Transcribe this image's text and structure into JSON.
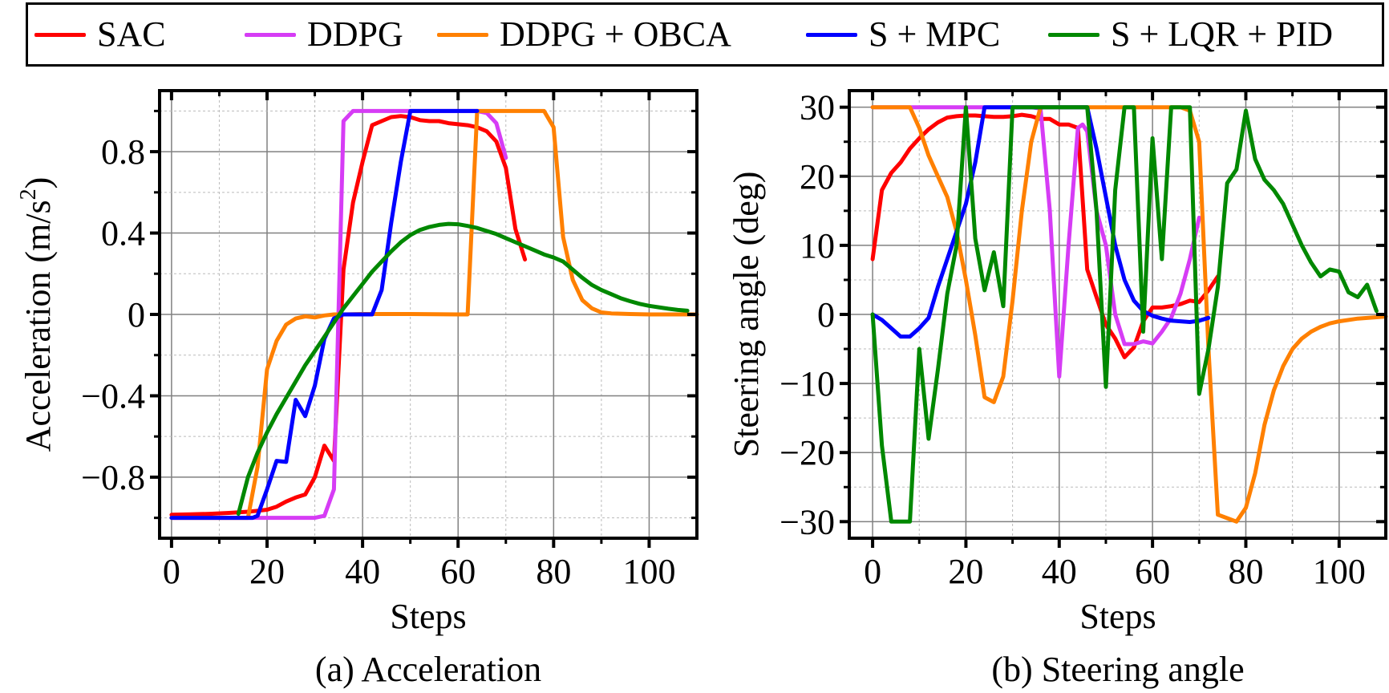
{
  "legend": {
    "items": [
      {
        "label": "SAC",
        "color": "#ff0000"
      },
      {
        "label": "DDPG",
        "color": "#d63cf5"
      },
      {
        "label": "DDPG + OBCA",
        "color": "#ff8000"
      },
      {
        "label": "S + MPC",
        "color": "#0000ff"
      },
      {
        "label": "S + LQR + PID",
        "color": "#008800"
      }
    ]
  },
  "chart_data": [
    {
      "type": "line",
      "id": "acceleration",
      "caption": "(a) Acceleration",
      "title": "",
      "xlabel": "Steps",
      "ylabel": "Acceleration (m/s²)",
      "ylabel_main": "Acceleration (m/s",
      "ylabel_sup": "2",
      "ylabel_end": ")",
      "xlim": [
        -2.5,
        110
      ],
      "ylim": [
        -1.1,
        1.1
      ],
      "xticks": [
        0,
        20,
        40,
        60,
        80,
        100
      ],
      "xtick_labels": [
        "0",
        "20",
        "40",
        "60",
        "80",
        "100"
      ],
      "yticks": [
        0.8,
        0.4,
        0,
        -0.4,
        -0.8
      ],
      "ytick_labels": [
        "0.8",
        "0.4",
        "0",
        "−0.4",
        "−0.8"
      ],
      "minor_yticks": [
        1.0,
        0.6,
        0.2,
        -0.2,
        -0.6,
        -1.0
      ],
      "minor_xticks": [
        10,
        30,
        50,
        70,
        90
      ],
      "grid": true,
      "series": [
        {
          "name": "SAC",
          "color": "#ff0000",
          "x": [
            0,
            4,
            8,
            12,
            14,
            16,
            18,
            20,
            22,
            24,
            26,
            28,
            30,
            32,
            34,
            36,
            38,
            40,
            42,
            44,
            46,
            48,
            50,
            52,
            54,
            56,
            58,
            60,
            62,
            64,
            66,
            68,
            70,
            72,
            74
          ],
          "y": [
            -0.985,
            -0.983,
            -0.98,
            -0.976,
            -0.973,
            -0.97,
            -0.965,
            -0.96,
            -0.945,
            -0.92,
            -0.9,
            -0.885,
            -0.8,
            -0.645,
            -0.72,
            0.22,
            0.55,
            0.75,
            0.93,
            0.95,
            0.97,
            0.975,
            0.97,
            0.955,
            0.95,
            0.95,
            0.94,
            0.935,
            0.93,
            0.92,
            0.9,
            0.85,
            0.72,
            0.42,
            0.27
          ]
        },
        {
          "name": "DDPG",
          "color": "#d63cf5",
          "x": [
            0,
            10,
            20,
            30,
            32,
            34,
            36,
            38,
            40,
            50,
            60,
            64,
            66,
            68,
            70
          ],
          "y": [
            -1.0,
            -1.0,
            -1.0,
            -1.0,
            -0.99,
            -0.86,
            0.95,
            1.0,
            1.0,
            1.0,
            1.0,
            1.0,
            0.99,
            0.94,
            0.77
          ]
        },
        {
          "name": "DDPG + OBCA",
          "color": "#ff8000",
          "x": [
            0,
            10,
            16,
            18,
            20,
            22,
            24,
            26,
            28,
            30,
            32,
            34,
            36,
            40,
            50,
            60,
            62,
            64,
            66,
            70,
            78,
            80,
            82,
            84,
            86,
            88,
            90,
            92,
            96,
            100,
            110
          ],
          "y": [
            -1.0,
            -1.0,
            -1.0,
            -0.75,
            -0.27,
            -0.13,
            -0.05,
            -0.02,
            -0.01,
            -0.015,
            -0.005,
            0.0,
            0.0,
            0.002,
            0.002,
            0.0,
            0.0,
            1.0,
            1.0,
            1.0,
            1.0,
            0.92,
            0.38,
            0.17,
            0.07,
            0.03,
            0.01,
            0.005,
            0.002,
            0.0,
            0.0
          ]
        },
        {
          "name": "S + MPC",
          "color": "#0000ff",
          "x": [
            0,
            10,
            17,
            18,
            20,
            22,
            24,
            26,
            28,
            30,
            32,
            34,
            36,
            40,
            42,
            44,
            46,
            48,
            50,
            55,
            60,
            64
          ],
          "y": [
            -1.0,
            -1.0,
            -1.0,
            -0.99,
            -0.86,
            -0.72,
            -0.725,
            -0.42,
            -0.5,
            -0.35,
            -0.12,
            -0.02,
            0.0,
            0.0,
            0.0,
            0.12,
            0.45,
            0.75,
            1.0,
            1.0,
            1.0,
            1.0
          ]
        },
        {
          "name": "S + LQR + PID",
          "color": "#008800",
          "x": [
            14,
            16,
            18,
            20,
            22,
            24,
            26,
            28,
            30,
            32,
            34,
            36,
            38,
            40,
            42,
            44,
            46,
            48,
            50,
            52,
            54,
            56,
            58,
            60,
            62,
            64,
            66,
            68,
            70,
            72,
            74,
            76,
            78,
            80,
            82,
            84,
            86,
            88,
            90,
            92,
            94,
            96,
            98,
            100,
            102,
            104,
            106,
            108
          ],
          "y": [
            -0.98,
            -0.8,
            -0.68,
            -0.58,
            -0.49,
            -0.41,
            -0.33,
            -0.25,
            -0.18,
            -0.11,
            -0.04,
            0.03,
            0.09,
            0.15,
            0.21,
            0.26,
            0.31,
            0.355,
            0.39,
            0.415,
            0.43,
            0.44,
            0.445,
            0.443,
            0.435,
            0.425,
            0.41,
            0.395,
            0.375,
            0.355,
            0.335,
            0.315,
            0.295,
            0.28,
            0.26,
            0.22,
            0.18,
            0.145,
            0.12,
            0.1,
            0.08,
            0.065,
            0.052,
            0.042,
            0.035,
            0.028,
            0.022,
            0.018
          ]
        }
      ]
    },
    {
      "type": "line",
      "id": "steering",
      "caption": "(b) Steering angle",
      "title": "",
      "xlabel": "Steps",
      "ylabel": "Steering angle (deg)",
      "xlim": [
        -5,
        110
      ],
      "ylim": [
        -32.4,
        32.4
      ],
      "xticks": [
        0,
        20,
        40,
        60,
        80,
        100
      ],
      "xtick_labels": [
        "0",
        "20",
        "40",
        "60",
        "80",
        "100"
      ],
      "yticks": [
        30,
        20,
        10,
        0,
        -10,
        -20,
        -30
      ],
      "ytick_labels": [
        "30",
        "20",
        "10",
        "0",
        "−10",
        "−20",
        "−30"
      ],
      "minor_yticks": [
        25,
        15,
        5,
        -5,
        -15,
        -25
      ],
      "minor_xticks": [
        10,
        30,
        50,
        70,
        90
      ],
      "grid": true,
      "series": [
        {
          "name": "SAC",
          "color": "#ff0000",
          "x": [
            0,
            2,
            4,
            6,
            8,
            10,
            12,
            14,
            16,
            18,
            20,
            22,
            24,
            26,
            28,
            30,
            32,
            34,
            36,
            38,
            40,
            42,
            44,
            46,
            48,
            50,
            52,
            54,
            56,
            58,
            60,
            62,
            64,
            66,
            68,
            70,
            72,
            74
          ],
          "y": [
            8,
            18,
            20.5,
            22,
            24,
            25.5,
            26.8,
            27.8,
            28.5,
            28.7,
            28.8,
            28.8,
            28.7,
            28.6,
            28.6,
            28.7,
            28.9,
            28.7,
            28.3,
            28.3,
            27.5,
            27.5,
            27.0,
            6.5,
            2.5,
            -1.5,
            -3.5,
            -6.2,
            -4.8,
            -1.0,
            1.0,
            1.0,
            1.2,
            1.5,
            2.0,
            1.8,
            3.5,
            5.5
          ]
        },
        {
          "name": "DDPG",
          "color": "#d63cf5",
          "x": [
            0,
            10,
            20,
            30,
            34,
            36,
            38,
            40,
            42,
            44,
            45,
            46,
            48,
            50,
            52,
            54,
            56,
            58,
            60,
            62,
            64,
            66,
            68,
            70
          ],
          "y": [
            30,
            30,
            30,
            30,
            30,
            29.8,
            15,
            -9,
            10,
            27,
            27.5,
            26.5,
            15,
            10,
            0,
            -4.3,
            -4.3,
            -3.9,
            -4.2,
            -2.5,
            -0.5,
            3,
            8,
            14
          ]
        },
        {
          "name": "DDPG + OBCA",
          "color": "#ff8000",
          "x": [
            0,
            4,
            8,
            10,
            12,
            14,
            16,
            18,
            20,
            22,
            24,
            26,
            28,
            30,
            32,
            34,
            36,
            40,
            50,
            60,
            66,
            68,
            70,
            72,
            74,
            76,
            78,
            80,
            82,
            84,
            86,
            88,
            90,
            92,
            94,
            96,
            98,
            100,
            104,
            110
          ],
          "y": [
            30,
            30,
            30,
            27,
            23,
            20,
            17,
            12,
            5,
            -3,
            -12,
            -12.7,
            -9,
            2,
            15,
            25,
            30,
            30,
            30,
            30,
            30,
            29.5,
            25,
            -5,
            -29,
            -29.5,
            -30,
            -28,
            -23,
            -16,
            -11,
            -7.5,
            -5,
            -3.5,
            -2.5,
            -1.8,
            -1.3,
            -1.0,
            -0.6,
            -0.3
          ]
        },
        {
          "name": "S + MPC",
          "color": "#0000ff",
          "x": [
            0,
            2,
            4,
            6,
            8,
            10,
            12,
            14,
            16,
            18,
            20,
            22,
            24,
            26,
            28,
            30,
            40,
            46,
            48,
            50,
            52,
            54,
            56,
            58,
            60,
            62,
            64,
            66,
            68,
            70,
            72
          ],
          "y": [
            0,
            -0.8,
            -2.0,
            -3.2,
            -3.2,
            -2.0,
            -0.5,
            4,
            8,
            12,
            16,
            22,
            30,
            30,
            30,
            30,
            30,
            30,
            24,
            17,
            10,
            5,
            2,
            0.5,
            -0.2,
            -0.6,
            -0.9,
            -1.0,
            -1.1,
            -0.9,
            -0.5
          ]
        },
        {
          "name": "S + LQR + PID",
          "color": "#008800",
          "x": [
            0,
            2,
            4,
            6,
            8,
            10,
            12,
            14,
            16,
            18,
            20,
            22,
            24,
            26,
            28,
            30,
            36,
            40,
            44,
            46,
            48,
            50,
            52,
            54,
            56,
            58,
            60,
            62,
            64,
            66,
            68,
            70,
            72,
            74,
            76,
            78,
            80,
            82,
            84,
            86,
            88,
            90,
            92,
            94,
            96,
            98,
            100,
            102,
            104,
            106,
            108
          ],
          "y": [
            0,
            -19,
            -30,
            -30,
            -30,
            -5,
            -18,
            -8,
            3,
            10,
            30,
            11,
            3.5,
            9,
            1.2,
            30,
            30,
            30,
            30,
            30,
            15,
            -10.5,
            18,
            30,
            30,
            -2.5,
            25.5,
            8,
            30,
            30,
            30,
            -11.5,
            -5,
            4,
            19,
            21,
            29.5,
            22.5,
            19.5,
            18,
            16,
            13,
            10,
            7.5,
            5.5,
            6.5,
            6.2,
            3.2,
            2.5,
            4.3,
            0.5
          ]
        }
      ]
    }
  ]
}
